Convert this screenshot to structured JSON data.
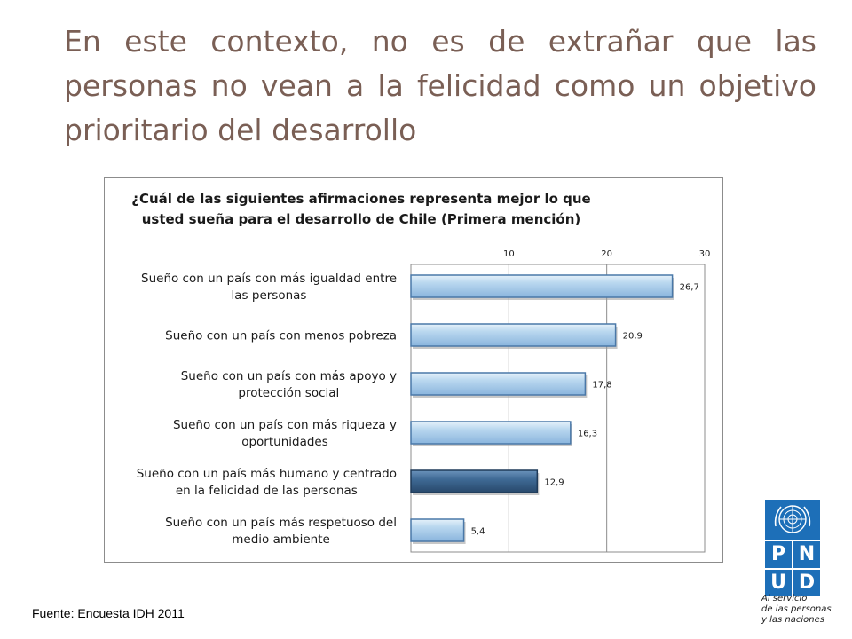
{
  "slide": {
    "title": "En este contexto, no es de extrañar que las personas no vean a la felicidad como un objetivo prioritario del desarrollo",
    "source": "Fuente: Encuesta IDH 2011"
  },
  "logo": {
    "letters": [
      "P",
      "N",
      "U",
      "D"
    ],
    "tagline": "Al servicio\nde las personas\ny las naciones",
    "color": "#1d6fb8"
  },
  "chart_data": {
    "type": "bar",
    "orientation": "horizontal",
    "title": "¿Cuál de las siguientes afirmaciones representa mejor lo que\nusted sueña para el desarrollo de Chile (Primera mención)",
    "categories": [
      "Sueño con un país con más igualdad entre\nlas personas",
      "Sueño con un país con menos pobreza",
      "Sueño con un país con más apoyo y\nprotección social",
      "Sueño con un país con más riqueza y\noportunidades",
      "Sueño con un país más humano y centrado\nen la felicidad de las personas",
      "Sueño con un país más respetuoso del\nmedio ambiente"
    ],
    "values": [
      26.7,
      20.9,
      17.8,
      16.3,
      12.9,
      5.4
    ],
    "value_labels": [
      "26,7",
      "20,9",
      "17,8",
      "16,3",
      "12,9",
      "5,4"
    ],
    "highlighted_index": 4,
    "xlim": [
      0,
      30
    ],
    "x_ticks": [
      10,
      20,
      30
    ],
    "x_tick_labels": [
      "10",
      "20",
      "30"
    ],
    "axis_position": "top",
    "grid": true,
    "colors": {
      "bar": "#a9cbe8",
      "highlight": "#3f6a95",
      "grid": "#8c8c8c"
    }
  }
}
